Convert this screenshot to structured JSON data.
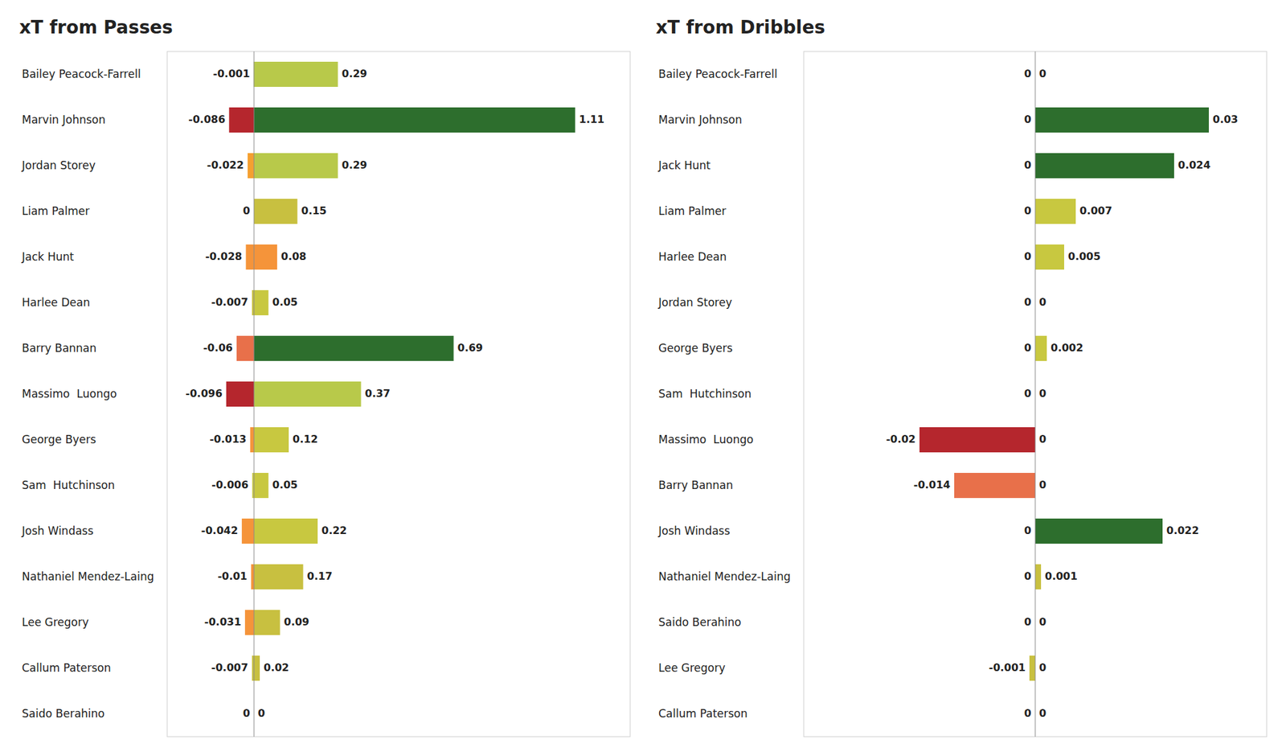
{
  "chart_data": [
    {
      "type": "bar",
      "orientation": "horizontal",
      "stacked": true,
      "title": "xT from Passes",
      "categories": [
        "Bailey Peacock-Farrell",
        "Marvin Johnson",
        "Jordan Storey",
        "Liam Palmer",
        "Jack Hunt",
        "Harlee Dean",
        "Barry Bannan",
        "Massimo  Luongo",
        "George Byers",
        "Sam  Hutchinson",
        "Josh Windass",
        "Nathaniel Mendez-Laing",
        "Lee Gregory",
        "Callum Paterson",
        "Saido Berahino"
      ],
      "series": [
        {
          "values": [
            -0.001,
            -0.086,
            -0.022,
            0,
            -0.028,
            -0.007,
            -0.06,
            -0.096,
            -0.013,
            -0.006,
            -0.042,
            -0.01,
            -0.031,
            -0.007,
            0
          ],
          "colors": [
            "#b8c94a",
            "#b5262d",
            "#f5a030",
            "#c8c040",
            "#f5943a",
            "#c8c040",
            "#e8704a",
            "#b5262d",
            "#f5943a",
            "#c8c840",
            "#f5943a",
            "#f5943a",
            "#f5943a",
            "#c8c040",
            "#c8c040"
          ]
        },
        {
          "values": [
            0.29,
            1.11,
            0.29,
            0.15,
            0.08,
            0.05,
            0.69,
            0.37,
            0.12,
            0.05,
            0.22,
            0.17,
            0.09,
            0.02,
            0
          ],
          "colors": [
            "#b8c94a",
            "#2d6e2d",
            "#b8c94a",
            "#c8c040",
            "#f5943a",
            "#c8c840",
            "#2d6e2d",
            "#b8c94a",
            "#c8c840",
            "#c8c840",
            "#c8c840",
            "#c8c040",
            "#c8c040",
            "#c8c040",
            "#c8c040"
          ]
        }
      ],
      "xlim": [
        -0.3,
        1.3
      ],
      "tick_labels": false,
      "grid": false,
      "data_labels": true
    },
    {
      "type": "bar",
      "orientation": "horizontal",
      "stacked": true,
      "title": "xT from Dribbles",
      "categories": [
        "Bailey Peacock-Farrell",
        "Marvin Johnson",
        "Jack Hunt",
        "Liam Palmer",
        "Harlee Dean",
        "Jordan Storey",
        "George Byers",
        "Sam  Hutchinson",
        "Massimo  Luongo",
        "Barry Bannan",
        "Josh Windass",
        "Nathaniel Mendez-Laing",
        "Saido Berahino",
        "Lee Gregory",
        "Callum Paterson"
      ],
      "series": [
        {
          "values": [
            0,
            0,
            0,
            0,
            0,
            0,
            0,
            0,
            -0.02,
            -0.014,
            0,
            0,
            0,
            -0.001,
            0
          ],
          "colors": [
            "#c8c040",
            "#c8c040",
            "#c8c040",
            "#c8c040",
            "#c8c040",
            "#c8c040",
            "#c8c040",
            "#c8c040",
            "#b5262d",
            "#e8704a",
            "#c8c040",
            "#c8c040",
            "#c8c040",
            "#c8c040",
            "#c8c040"
          ]
        },
        {
          "values": [
            0,
            0.03,
            0.024,
            0.007,
            0.005,
            0,
            0.002,
            0,
            0,
            0,
            0.022,
            0.001,
            0,
            0,
            0
          ],
          "colors": [
            "#c8c040",
            "#2d6e2d",
            "#2d6e2d",
            "#c8c840",
            "#c8c840",
            "#c8c040",
            "#c8c840",
            "#c8c040",
            "#c8c040",
            "#c8c040",
            "#2d6e2d",
            "#c8c040",
            "#c8c040",
            "#c8c040",
            "#c8c040"
          ]
        }
      ],
      "xlim": [
        -0.04,
        0.04
      ],
      "tick_labels": false,
      "grid": false,
      "data_labels": true
    }
  ]
}
